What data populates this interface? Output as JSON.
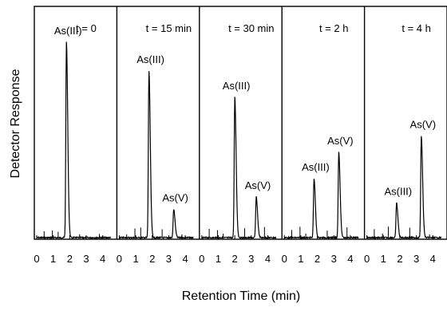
{
  "chart_data": {
    "type": "line",
    "ylabel": "Detector Response",
    "xlabel": "Retention Time (min)",
    "x_ticks": [
      "0",
      "1",
      "2",
      "3",
      "4"
    ],
    "xlim": [
      0,
      4.5
    ],
    "ylim": [
      0,
      100
    ],
    "panels": [
      {
        "time_label": "t = 0",
        "peaks": [
          {
            "label": "As(III)",
            "retention_time": 1.8,
            "height": 96
          }
        ]
      },
      {
        "time_label": "t = 15 min",
        "peaks": [
          {
            "label": "As(III)",
            "retention_time": 1.8,
            "height": 82
          },
          {
            "label": "As(V)",
            "retention_time": 3.3,
            "height": 14
          }
        ]
      },
      {
        "time_label": "t = 30 min",
        "peaks": [
          {
            "label": "As(III)",
            "retention_time": 2.0,
            "height": 69
          },
          {
            "label": "As(V)",
            "retention_time": 3.3,
            "height": 20
          }
        ]
      },
      {
        "time_label": "t = 2 h",
        "peaks": [
          {
            "label": "As(III)",
            "retention_time": 1.8,
            "height": 29
          },
          {
            "label": "As(V)",
            "retention_time": 3.3,
            "height": 42
          }
        ]
      },
      {
        "time_label": "t = 4 h",
        "peaks": [
          {
            "label": "As(III)",
            "retention_time": 1.8,
            "height": 17
          },
          {
            "label": "As(V)",
            "retention_time": 3.3,
            "height": 50
          }
        ]
      }
    ]
  }
}
